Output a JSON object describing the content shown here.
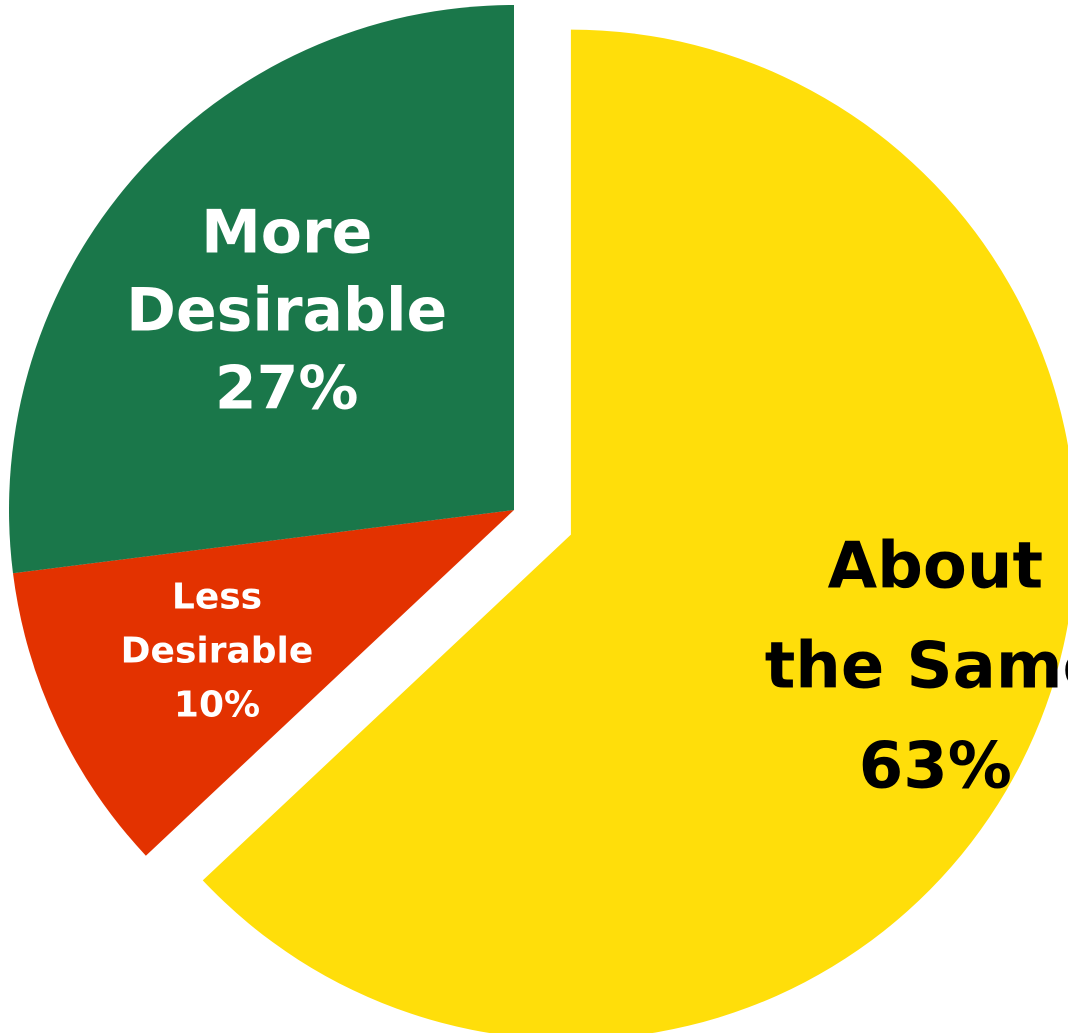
{
  "chart_data": {
    "type": "pie",
    "title": "",
    "slices": [
      {
        "label": "About the Same",
        "value": 63,
        "value_label": "63%",
        "color": "#FFDE0A",
        "label_color": "#000000",
        "exploded": true
      },
      {
        "label": "Less Desirable",
        "value": 10,
        "value_label": "10%",
        "color": "#E33200",
        "label_color": "#FFFFFF",
        "exploded": false
      },
      {
        "label": "More Desirable",
        "value": 27,
        "value_label": "27%",
        "color": "#1A774A",
        "label_color": "#FFFFFF",
        "exploded": false
      }
    ],
    "legend": "none"
  }
}
